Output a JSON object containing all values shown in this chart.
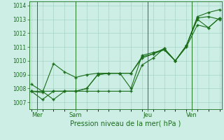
{
  "xlabel": "Pression niveau de la mer( hPa )",
  "ylim": [
    1006.5,
    1014.3
  ],
  "yticks": [
    1007,
    1008,
    1009,
    1010,
    1011,
    1012,
    1013,
    1014
  ],
  "background_color": "#cceee4",
  "grid_color": "#9ecfbf",
  "line_color": "#1a6e1a",
  "day_labels": [
    "Mer",
    "Sam",
    "Jeu",
    "Ven"
  ],
  "day_positions": [
    0.5,
    4.0,
    10.5,
    14.5
  ],
  "vline_positions": [
    0.5,
    4.0,
    10.5,
    14.5
  ],
  "total_points": 18,
  "xlim": [
    -0.2,
    17.2
  ],
  "line1_x": [
    0,
    1,
    2,
    3,
    4,
    5,
    6,
    7,
    8,
    9,
    10,
    11,
    12,
    13,
    14,
    15,
    16,
    17
  ],
  "line1": [
    1008.3,
    1007.8,
    1007.2,
    1007.8,
    1007.8,
    1008.0,
    1009.0,
    1009.1,
    1009.1,
    1009.1,
    1010.3,
    1010.5,
    1010.8,
    1010.0,
    1011.1,
    1013.1,
    1013.2,
    1013.0
  ],
  "line2_x": [
    0,
    1,
    2,
    3,
    4,
    5,
    6,
    7,
    8,
    9,
    10,
    11,
    12,
    13,
    14,
    15,
    16,
    17
  ],
  "line2": [
    1007.8,
    1007.8,
    1007.8,
    1007.8,
    1007.8,
    1007.8,
    1007.8,
    1007.8,
    1007.8,
    1007.8,
    1009.7,
    1010.2,
    1010.9,
    1010.0,
    1011.0,
    1012.6,
    1012.4,
    1013.1
  ],
  "line3_x": [
    0,
    1,
    2,
    3,
    4,
    5,
    6,
    7,
    8,
    9,
    10,
    11,
    12,
    13,
    14,
    15,
    16,
    17
  ],
  "line3": [
    1007.8,
    1007.7,
    1009.8,
    1009.2,
    1008.8,
    1009.0,
    1009.1,
    1009.1,
    1009.1,
    1008.0,
    1010.4,
    1010.6,
    1010.8,
    1010.0,
    1011.1,
    1013.2,
    1013.5,
    1013.7
  ],
  "line4_x": [
    0,
    1,
    2,
    3,
    4,
    5,
    6,
    7,
    8,
    9,
    10,
    11,
    12,
    13,
    14,
    15,
    16,
    17
  ],
  "line4": [
    1007.8,
    1007.2,
    1007.8,
    1007.8,
    1007.8,
    1008.0,
    1009.0,
    1009.1,
    1009.1,
    1009.1,
    1010.2,
    1010.5,
    1010.9,
    1010.0,
    1011.1,
    1013.0,
    1012.4,
    1013.1
  ]
}
